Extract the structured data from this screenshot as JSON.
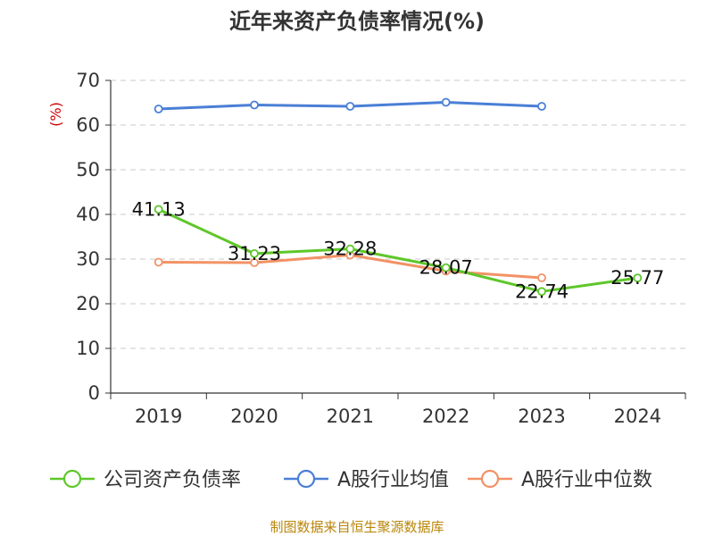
{
  "chart_data": {
    "type": "line",
    "title": "近年来资产负债率情况(%)",
    "ylabel": "(%)",
    "xlabel": "",
    "categories": [
      "2019",
      "2020",
      "2021",
      "2022",
      "2023",
      "2024"
    ],
    "ylim": [
      0,
      70
    ],
    "yticks": [
      0,
      10,
      20,
      30,
      40,
      50,
      60,
      70
    ],
    "grid": "horizontal-dashed",
    "legend": "bottom",
    "series": [
      {
        "name": "公司资产负债率",
        "color": "#5ec72a",
        "values": [
          41.13,
          31.23,
          32.28,
          28.07,
          22.74,
          25.77
        ],
        "labels": [
          "41.13",
          "31.23",
          "32.28",
          "28.07",
          "22.74",
          "25.77"
        ]
      },
      {
        "name": "A股行业均值",
        "color": "#4a7fd6",
        "values": [
          63.6,
          64.5,
          64.2,
          65.1,
          64.2,
          null
        ]
      },
      {
        "name": "A股行业中位数",
        "color": "#f29266",
        "values": [
          29.3,
          29.2,
          30.9,
          27.3,
          25.8,
          null
        ]
      }
    ]
  },
  "source": "制图数据来自恒生聚源数据库"
}
